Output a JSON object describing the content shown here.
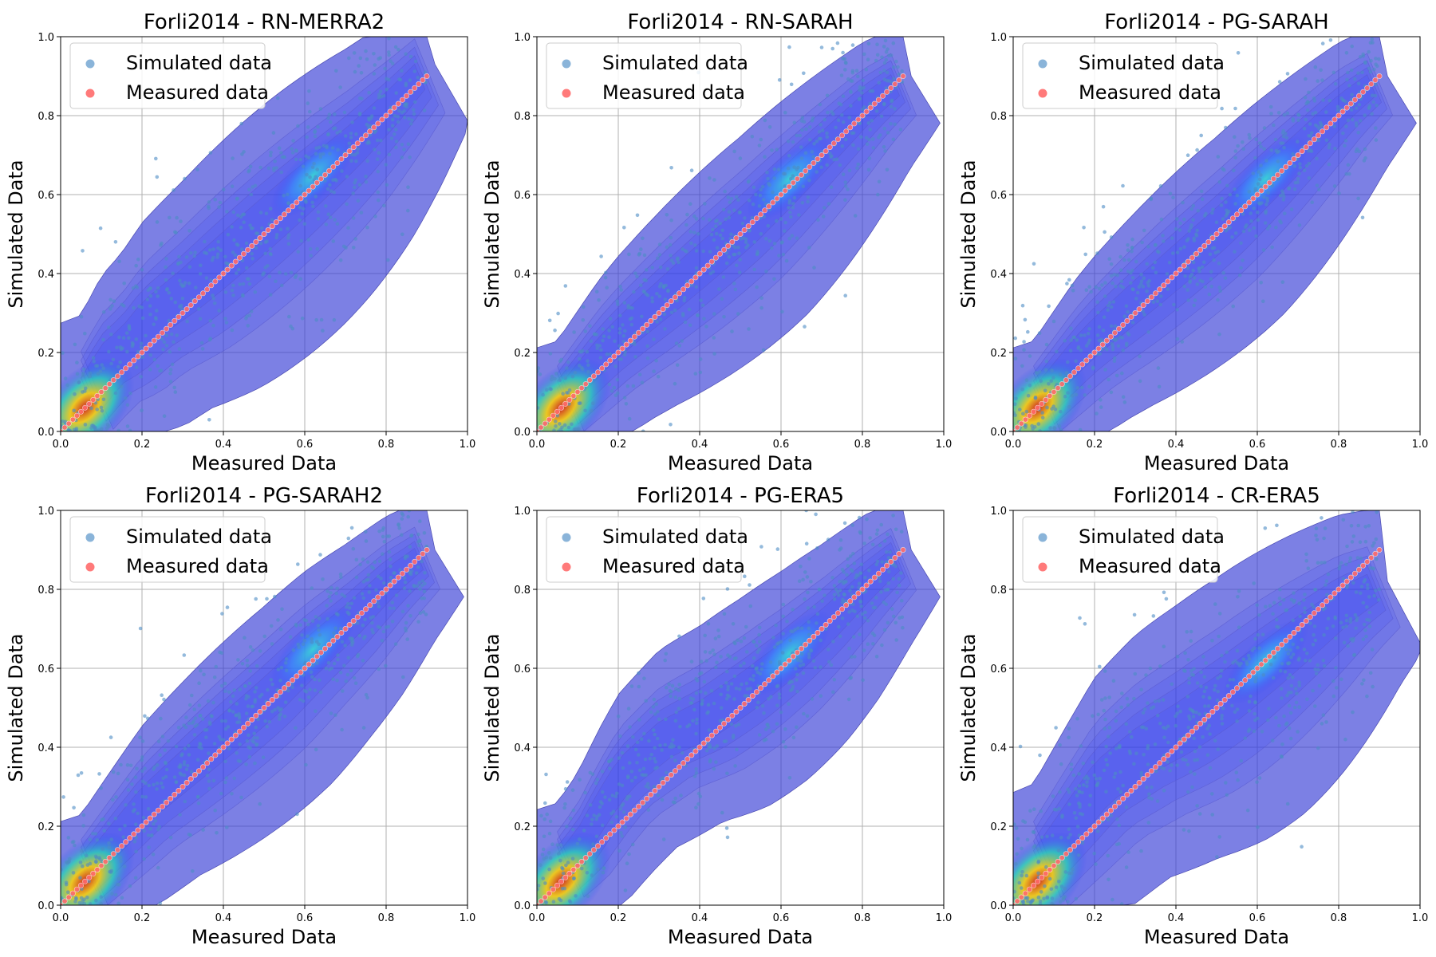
{
  "chart_data": [
    {
      "type": "scatter",
      "title": "Forli2014 - RN-MERRA2",
      "xlabel": "Measured Data",
      "ylabel": "Simulated Data",
      "xlim": [
        0,
        1
      ],
      "ylim": [
        0,
        1
      ],
      "xticks": [
        "0.0",
        "0.2",
        "0.4",
        "0.6",
        "0.8",
        "1.0"
      ],
      "yticks": [
        "0.0",
        "0.2",
        "0.4",
        "0.6",
        "0.8",
        "1.0"
      ],
      "grid": true,
      "legend_position": "top-left",
      "series": [
        {
          "name": "Simulated data",
          "color": "#4c8cc4",
          "spread": 0.12,
          "bias": 0.04,
          "x": [
            0.05,
            0.1,
            0.15,
            0.2,
            0.3,
            0.4,
            0.5,
            0.6,
            0.7,
            0.8,
            0.9
          ],
          "y": [
            0.1,
            0.18,
            0.22,
            0.28,
            0.36,
            0.45,
            0.54,
            0.63,
            0.72,
            0.82,
            0.93
          ]
        },
        {
          "name": "Measured data",
          "color": "#ff6b6b",
          "x": [
            0.0,
            0.1,
            0.2,
            0.3,
            0.4,
            0.5,
            0.6,
            0.7,
            0.8,
            0.9
          ],
          "y": [
            0.0,
            0.1,
            0.2,
            0.3,
            0.4,
            0.5,
            0.6,
            0.7,
            0.8,
            0.9
          ]
        }
      ]
    },
    {
      "type": "scatter",
      "title": "Forli2014 - RN-SARAH",
      "xlabel": "Measured Data",
      "ylabel": "Simulated Data",
      "xlim": [
        0,
        1
      ],
      "ylim": [
        0,
        1
      ],
      "xticks": [
        "0.0",
        "0.2",
        "0.4",
        "0.6",
        "0.8",
        "1.0"
      ],
      "yticks": [
        "0.0",
        "0.2",
        "0.4",
        "0.6",
        "0.8",
        "1.0"
      ],
      "grid": true,
      "legend_position": "top-left",
      "series": [
        {
          "name": "Simulated data",
          "color": "#4c8cc4",
          "spread": 0.1,
          "bias": 0.02,
          "x": [
            0.05,
            0.1,
            0.15,
            0.2,
            0.3,
            0.4,
            0.5,
            0.6,
            0.7,
            0.8,
            0.9
          ],
          "y": [
            0.08,
            0.14,
            0.2,
            0.25,
            0.34,
            0.43,
            0.52,
            0.62,
            0.72,
            0.82,
            0.9
          ]
        },
        {
          "name": "Measured data",
          "color": "#ff6b6b",
          "x": [
            0.0,
            0.1,
            0.2,
            0.3,
            0.4,
            0.5,
            0.6,
            0.7,
            0.8,
            0.9
          ],
          "y": [
            0.0,
            0.1,
            0.2,
            0.3,
            0.4,
            0.5,
            0.6,
            0.7,
            0.8,
            0.9
          ]
        }
      ]
    },
    {
      "type": "scatter",
      "title": "Forli2014 - PG-SARAH",
      "xlabel": "Measured Data",
      "ylabel": "Simulated Data",
      "xlim": [
        0,
        1
      ],
      "ylim": [
        0,
        1
      ],
      "xticks": [
        "0.0",
        "0.2",
        "0.4",
        "0.6",
        "0.8",
        "1.0"
      ],
      "yticks": [
        "0.0",
        "0.2",
        "0.4",
        "0.6",
        "0.8",
        "1.0"
      ],
      "grid": true,
      "legend_position": "top-left",
      "series": [
        {
          "name": "Simulated data",
          "color": "#4c8cc4",
          "spread": 0.1,
          "bias": 0.02,
          "x": [
            0.05,
            0.1,
            0.15,
            0.2,
            0.3,
            0.4,
            0.5,
            0.6,
            0.7,
            0.8,
            0.9
          ],
          "y": [
            0.08,
            0.14,
            0.2,
            0.25,
            0.34,
            0.43,
            0.52,
            0.62,
            0.72,
            0.82,
            0.9
          ]
        },
        {
          "name": "Measured data",
          "color": "#ff6b6b",
          "x": [
            0.0,
            0.1,
            0.2,
            0.3,
            0.4,
            0.5,
            0.6,
            0.7,
            0.8,
            0.9
          ],
          "y": [
            0.0,
            0.1,
            0.2,
            0.3,
            0.4,
            0.5,
            0.6,
            0.7,
            0.8,
            0.9
          ]
        }
      ]
    },
    {
      "type": "scatter",
      "title": "Forli2014 - PG-SARAH2",
      "xlabel": "Measured Data",
      "ylabel": "Simulated Data",
      "xlim": [
        0,
        1
      ],
      "ylim": [
        0,
        1
      ],
      "xticks": [
        "0.0",
        "0.2",
        "0.4",
        "0.6",
        "0.8",
        "1.0"
      ],
      "yticks": [
        "0.0",
        "0.2",
        "0.4",
        "0.6",
        "0.8",
        "1.0"
      ],
      "grid": true,
      "legend_position": "top-left",
      "series": [
        {
          "name": "Simulated data",
          "color": "#4c8cc4",
          "spread": 0.1,
          "bias": 0.02,
          "x": [
            0.05,
            0.1,
            0.15,
            0.2,
            0.3,
            0.4,
            0.5,
            0.6,
            0.7,
            0.8,
            0.9
          ],
          "y": [
            0.08,
            0.14,
            0.2,
            0.26,
            0.35,
            0.44,
            0.53,
            0.63,
            0.72,
            0.82,
            0.9
          ]
        },
        {
          "name": "Measured data",
          "color": "#ff6b6b",
          "x": [
            0.0,
            0.1,
            0.2,
            0.3,
            0.4,
            0.5,
            0.6,
            0.7,
            0.8,
            0.9
          ],
          "y": [
            0.0,
            0.1,
            0.2,
            0.3,
            0.4,
            0.5,
            0.6,
            0.7,
            0.8,
            0.9
          ]
        }
      ]
    },
    {
      "type": "scatter",
      "title": "Forli2014 - PG-ERA5",
      "xlabel": "Measured Data",
      "ylabel": "Simulated Data",
      "xlim": [
        0,
        1
      ],
      "ylim": [
        0,
        1
      ],
      "xticks": [
        "0.0",
        "0.2",
        "0.4",
        "0.6",
        "0.8",
        "1.0"
      ],
      "yticks": [
        "0.0",
        "0.2",
        "0.4",
        "0.6",
        "0.8",
        "1.0"
      ],
      "grid": true,
      "legend_position": "top-left",
      "series": [
        {
          "name": "Simulated data",
          "color": "#4c8cc4",
          "spread": 0.1,
          "bias": 0.03,
          "x": [
            0.05,
            0.1,
            0.15,
            0.2,
            0.3,
            0.4,
            0.5,
            0.6,
            0.7,
            0.8,
            0.9
          ],
          "y": [
            0.1,
            0.16,
            0.25,
            0.33,
            0.42,
            0.47,
            0.54,
            0.62,
            0.71,
            0.81,
            0.9
          ]
        },
        {
          "name": "Measured data",
          "color": "#ff6b6b",
          "x": [
            0.0,
            0.1,
            0.2,
            0.3,
            0.4,
            0.5,
            0.6,
            0.7,
            0.8,
            0.9
          ],
          "y": [
            0.0,
            0.1,
            0.2,
            0.3,
            0.4,
            0.5,
            0.6,
            0.7,
            0.8,
            0.9
          ]
        }
      ]
    },
    {
      "type": "scatter",
      "title": "Forli2014 - CR-ERA5",
      "xlabel": "Measured Data",
      "ylabel": "Simulated Data",
      "xlim": [
        0,
        1
      ],
      "ylim": [
        0,
        1
      ],
      "xticks": [
        "0.0",
        "0.2",
        "0.4",
        "0.6",
        "0.8",
        "1.0"
      ],
      "yticks": [
        "0.0",
        "0.2",
        "0.4",
        "0.6",
        "0.8",
        "1.0"
      ],
      "grid": true,
      "legend_position": "top-left",
      "series": [
        {
          "name": "Simulated data",
          "color": "#4c8cc4",
          "spread": 0.13,
          "bias": 0.04,
          "x": [
            0.05,
            0.1,
            0.15,
            0.2,
            0.3,
            0.4,
            0.5,
            0.6,
            0.7,
            0.8,
            0.9
          ],
          "y": [
            0.1,
            0.17,
            0.24,
            0.31,
            0.39,
            0.45,
            0.52,
            0.6,
            0.68,
            0.76,
            0.82
          ]
        },
        {
          "name": "Measured data",
          "color": "#ff6b6b",
          "x": [
            0.0,
            0.1,
            0.2,
            0.3,
            0.4,
            0.5,
            0.6,
            0.7,
            0.8,
            0.9
          ],
          "y": [
            0.0,
            0.1,
            0.2,
            0.3,
            0.4,
            0.5,
            0.6,
            0.7,
            0.8,
            0.9
          ]
        }
      ]
    }
  ]
}
